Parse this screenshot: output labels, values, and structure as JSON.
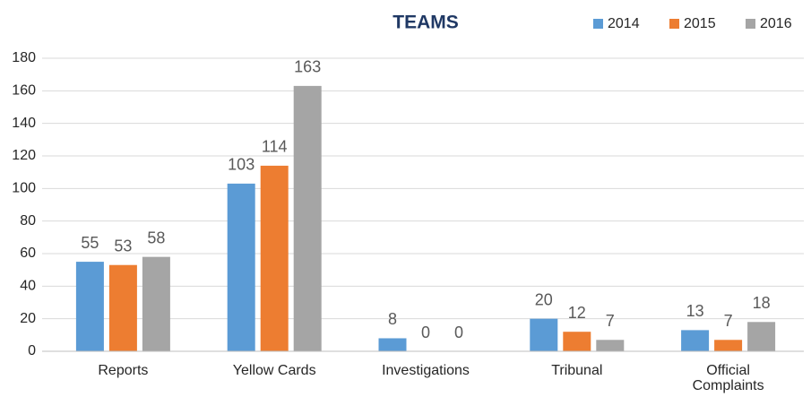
{
  "chart_data": {
    "type": "bar",
    "title": "TEAMS",
    "categories": [
      "Reports",
      "Yellow Cards",
      "Investigations",
      "Tribunal",
      "Official Complaints"
    ],
    "series": [
      {
        "name": "2014",
        "color": "#5b9bd5",
        "values": [
          55,
          103,
          8,
          20,
          13
        ]
      },
      {
        "name": "2015",
        "color": "#ed7d31",
        "values": [
          53,
          114,
          0,
          12,
          7
        ]
      },
      {
        "name": "2016",
        "color": "#a5a5a5",
        "values": [
          58,
          163,
          0,
          7,
          18
        ]
      }
    ],
    "ylim": [
      0,
      180
    ],
    "yticks": [
      0,
      20,
      40,
      60,
      80,
      100,
      120,
      140,
      160,
      180
    ],
    "grid": true,
    "legend": "top-right"
  }
}
